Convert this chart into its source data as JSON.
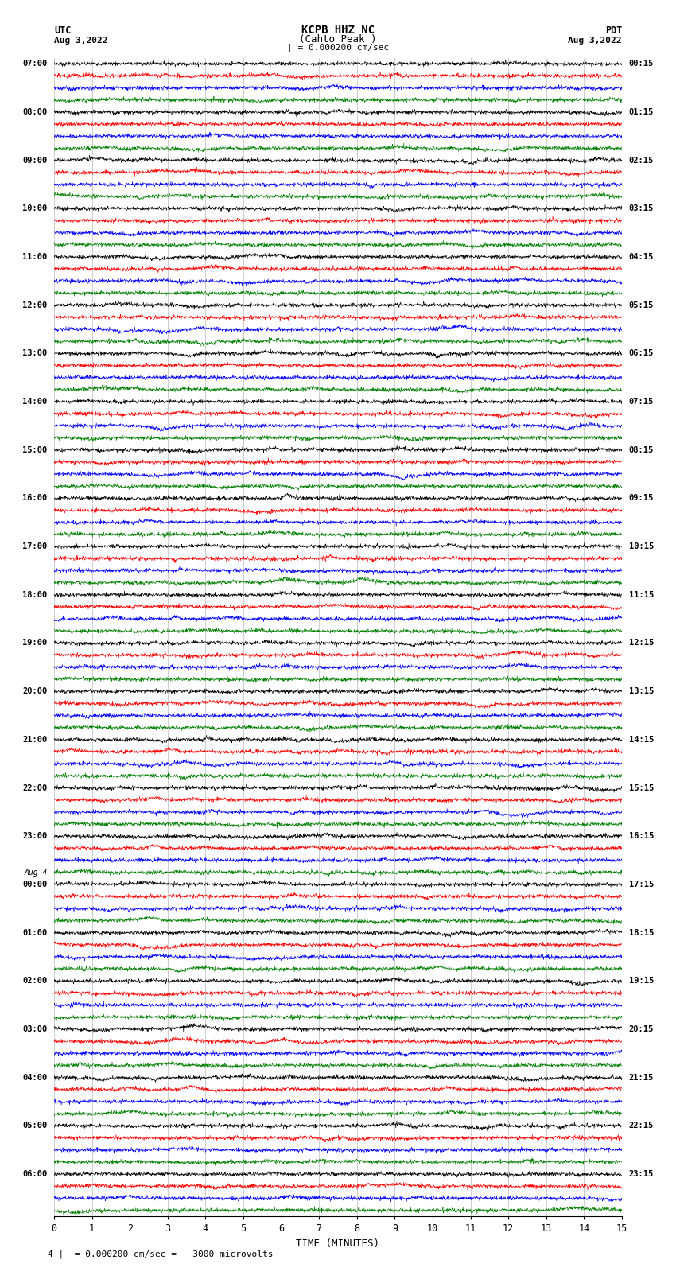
{
  "title_line1": "KCPB HHZ NC",
  "title_line2": "(Cahto Peak )",
  "scale_text": "| = 0.000200 cm/sec",
  "bottom_scale": "4 |  = 0.000200 cm/sec =   3000 microvolts",
  "utc_label": "UTC",
  "utc_date": "Aug 3,2022",
  "pdt_label": "PDT",
  "pdt_date": "Aug 3,2022",
  "xlabel": "TIME (MINUTES)",
  "xmin": 0,
  "xmax": 15,
  "xticks": [
    0,
    1,
    2,
    3,
    4,
    5,
    6,
    7,
    8,
    9,
    10,
    11,
    12,
    13,
    14,
    15
  ],
  "background_color": "#ffffff",
  "trace_colors": [
    "#000000",
    "#ff0000",
    "#0000ff",
    "#008000"
  ],
  "n_traces": 96,
  "n_samples": 1800,
  "amplitude": 0.3,
  "noise_scale": 0.08,
  "grid_color": "#888888",
  "utc_row_labels": [
    [
      0,
      "07:00"
    ],
    [
      4,
      "08:00"
    ],
    [
      8,
      "09:00"
    ],
    [
      12,
      "10:00"
    ],
    [
      16,
      "11:00"
    ],
    [
      20,
      "12:00"
    ],
    [
      24,
      "13:00"
    ],
    [
      28,
      "14:00"
    ],
    [
      32,
      "15:00"
    ],
    [
      36,
      "16:00"
    ],
    [
      40,
      "17:00"
    ],
    [
      44,
      "18:00"
    ],
    [
      48,
      "19:00"
    ],
    [
      52,
      "20:00"
    ],
    [
      56,
      "21:00"
    ],
    [
      60,
      "22:00"
    ],
    [
      64,
      "23:00"
    ],
    [
      67,
      "Aug 4"
    ],
    [
      68,
      "00:00"
    ],
    [
      72,
      "01:00"
    ],
    [
      76,
      "02:00"
    ],
    [
      80,
      "03:00"
    ],
    [
      84,
      "04:00"
    ],
    [
      88,
      "05:00"
    ],
    [
      92,
      "06:00"
    ]
  ],
  "pdt_row_labels": [
    [
      0,
      "00:15"
    ],
    [
      4,
      "01:15"
    ],
    [
      8,
      "02:15"
    ],
    [
      12,
      "03:15"
    ],
    [
      16,
      "04:15"
    ],
    [
      20,
      "05:15"
    ],
    [
      24,
      "06:15"
    ],
    [
      28,
      "07:15"
    ],
    [
      32,
      "08:15"
    ],
    [
      36,
      "09:15"
    ],
    [
      40,
      "10:15"
    ],
    [
      44,
      "11:15"
    ],
    [
      48,
      "12:15"
    ],
    [
      52,
      "13:15"
    ],
    [
      56,
      "14:15"
    ],
    [
      60,
      "15:15"
    ],
    [
      64,
      "16:15"
    ],
    [
      68,
      "17:15"
    ],
    [
      72,
      "18:15"
    ],
    [
      76,
      "19:15"
    ],
    [
      80,
      "20:15"
    ],
    [
      84,
      "21:15"
    ],
    [
      88,
      "22:15"
    ],
    [
      92,
      "23:15"
    ]
  ]
}
